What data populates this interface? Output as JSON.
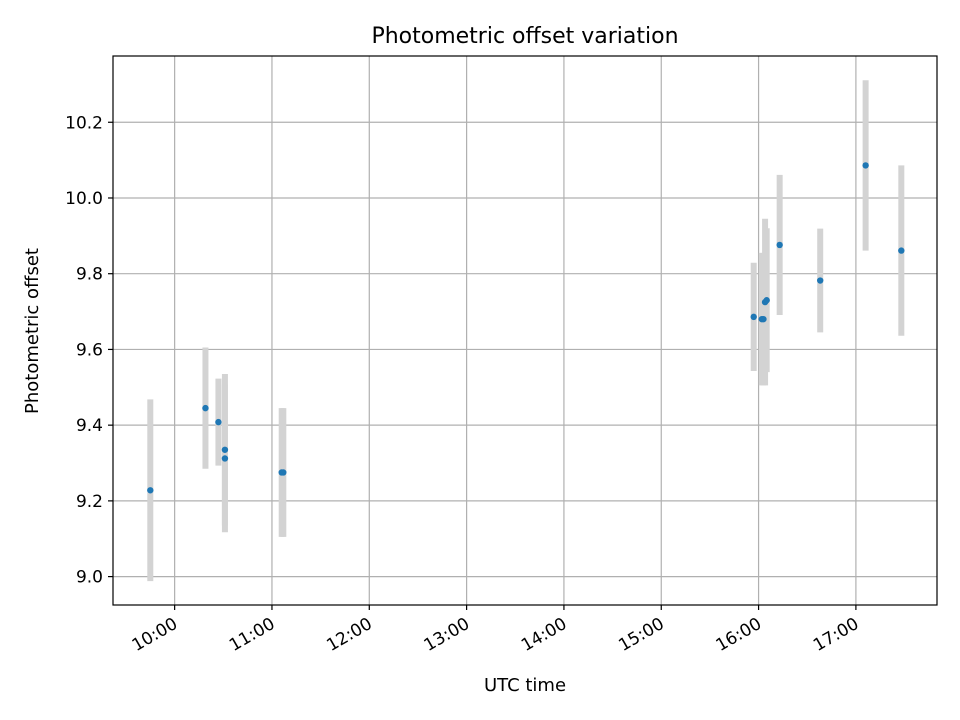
{
  "chart_data": {
    "type": "scatter",
    "title": "Photometric offset variation",
    "xlabel": "UTC time",
    "ylabel": "Photometric offset",
    "x_ticks": [
      "10:00",
      "11:00",
      "12:00",
      "13:00",
      "14:00",
      "15:00",
      "16:00",
      "17:00"
    ],
    "y_ticks": [
      "9.0",
      "9.2",
      "9.4",
      "9.6",
      "9.8",
      "10.0",
      "10.2"
    ],
    "xlim": [
      "09:22",
      "17:50"
    ],
    "ylim": [
      8.925,
      10.375
    ],
    "grid": true,
    "colors": {
      "point": "#1f77b4",
      "errorbar": "#d3d3d3",
      "grid": "#b0b0b0",
      "frame": "#000000"
    },
    "points": [
      {
        "x": "09:45",
        "y": 9.228,
        "yerr": 0.24
      },
      {
        "x": "10:19",
        "y": 9.445,
        "yerr": 0.16
      },
      {
        "x": "10:27",
        "y": 9.408,
        "yerr": 0.115
      },
      {
        "x": "10:31",
        "y": 9.335,
        "yerr": 0.2
      },
      {
        "x": "10:31",
        "y": 9.312,
        "yerr": 0.195
      },
      {
        "x": "11:06",
        "y": 9.275,
        "yerr": 0.17
      },
      {
        "x": "11:07",
        "y": 9.275,
        "yerr": 0.17
      },
      {
        "x": "15:57",
        "y": 9.686,
        "yerr": 0.143
      },
      {
        "x": "16:02",
        "y": 9.68,
        "yerr": 0.175
      },
      {
        "x": "16:03",
        "y": 9.68,
        "yerr": 0.175
      },
      {
        "x": "16:04",
        "y": 9.725,
        "yerr": 0.22
      },
      {
        "x": "16:05",
        "y": 9.73,
        "yerr": 0.19
      },
      {
        "x": "16:13",
        "y": 9.876,
        "yerr": 0.185
      },
      {
        "x": "16:38",
        "y": 9.782,
        "yerr": 0.137
      },
      {
        "x": "17:06",
        "y": 10.086,
        "yerr": 0.225
      },
      {
        "x": "17:28",
        "y": 9.861,
        "yerr": 0.225
      }
    ]
  }
}
